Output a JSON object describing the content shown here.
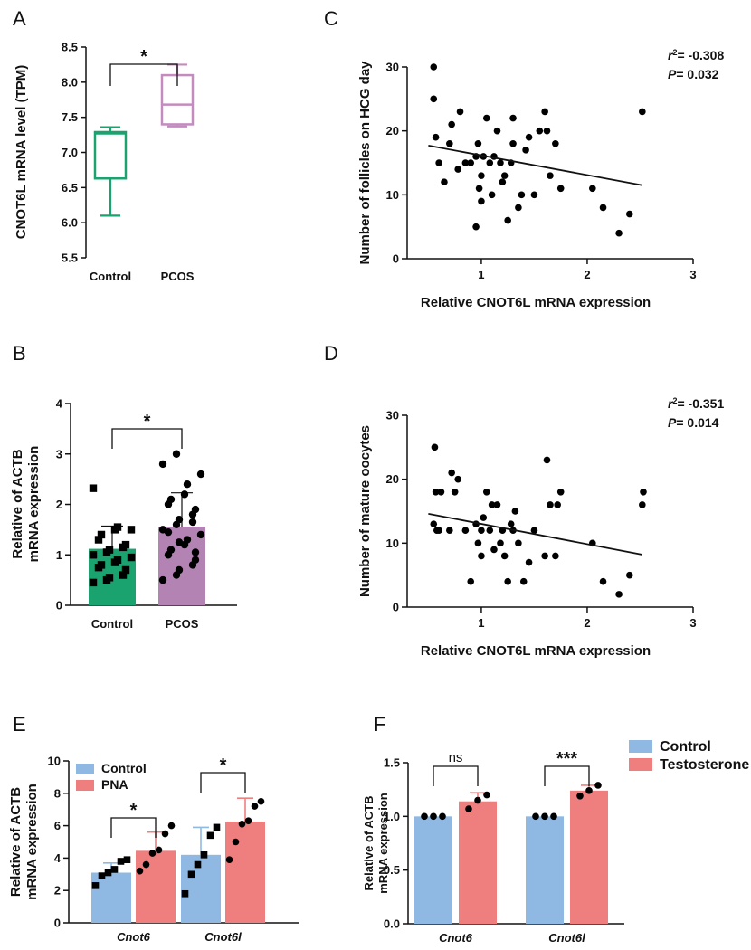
{
  "panels": {
    "A": "A",
    "B": "B",
    "C": "C",
    "D": "D",
    "E": "E",
    "F": "F"
  },
  "chart_data": [
    {
      "id": "A",
      "type": "box",
      "ylabel": "CNOT6L mRNA level (TPM)",
      "ylim": [
        5.5,
        8.5
      ],
      "yticks": [
        5.5,
        6.0,
        6.5,
        7.0,
        7.5,
        8.0,
        8.5
      ],
      "yticklabels": [
        "5.5",
        "6.0",
        "6.5",
        "7.0",
        "7.5",
        "8.0",
        "8.5"
      ],
      "categories": [
        "Control",
        "PCOS"
      ],
      "boxes": [
        {
          "name": "Control",
          "min": 6.1,
          "q1": 6.63,
          "median": 7.27,
          "q3": 7.29,
          "max": 7.36,
          "color": "#1aa36f"
        },
        {
          "name": "PCOS",
          "min": 7.37,
          "q1": 7.4,
          "median": 7.68,
          "q3": 8.1,
          "max": 8.25,
          "color": "#c48bbf"
        }
      ],
      "significance": "*"
    },
    {
      "id": "B",
      "type": "bar",
      "ylabel": [
        "Relative of ACTB",
        "mRNA expression"
      ],
      "ylim": [
        0,
        4
      ],
      "yticks": [
        0,
        1,
        2,
        3,
        4
      ],
      "yticklabels": [
        "0",
        "1",
        "2",
        "3",
        "4"
      ],
      "categories": [
        "Control",
        "PCOS"
      ],
      "values": [
        1.12,
        1.56
      ],
      "errors": [
        0.45,
        0.67
      ],
      "colors": [
        "#1aa36f",
        "#b383b3"
      ],
      "points": [
        [
          0.45,
          0.5,
          0.55,
          0.6,
          0.7,
          0.75,
          0.8,
          0.85,
          0.9,
          0.95,
          1.0,
          1.05,
          1.1,
          1.15,
          1.2,
          1.3,
          1.4,
          1.5,
          1.55,
          1.5,
          2.32
        ],
        [
          0.5,
          0.6,
          0.7,
          0.8,
          0.9,
          1.0,
          1.1,
          1.2,
          1.3,
          1.4,
          1.5,
          1.6,
          1.7,
          1.8,
          1.9,
          2.0,
          2.1,
          2.2,
          2.4,
          2.6,
          2.8,
          3.0,
          1.25,
          1.65,
          1.05,
          1.45
        ]
      ],
      "point_markers": [
        "square",
        "circle"
      ],
      "significance": "*"
    },
    {
      "id": "C",
      "type": "scatter",
      "xlabel": "Relative CNOT6L mRNA expression",
      "ylabel": "Number of follicles on HCG day",
      "xlim": [
        0.3,
        3
      ],
      "ylim": [
        0,
        30
      ],
      "xticks": [
        1,
        2,
        3
      ],
      "xticklabels": [
        "1",
        "2",
        "3"
      ],
      "yticks": [
        0,
        10,
        20,
        30
      ],
      "yticklabels": [
        "0",
        "10",
        "20",
        "30"
      ],
      "x": [
        0.55,
        0.55,
        0.57,
        0.6,
        0.65,
        0.7,
        0.72,
        0.78,
        0.8,
        0.85,
        0.9,
        0.95,
        0.95,
        0.97,
        0.98,
        1.0,
        1.0,
        1.02,
        1.05,
        1.08,
        1.1,
        1.12,
        1.15,
        1.18,
        1.2,
        1.22,
        1.25,
        1.28,
        1.3,
        1.3,
        1.35,
        1.38,
        1.42,
        1.45,
        1.5,
        1.55,
        1.6,
        1.62,
        1.65,
        1.7,
        1.75,
        2.05,
        2.15,
        2.3,
        2.4,
        2.52
      ],
      "y": [
        30,
        25,
        19,
        15,
        12,
        18,
        21,
        14,
        23,
        15,
        15,
        5,
        16,
        18,
        11,
        9,
        13,
        16,
        22,
        15,
        10,
        16,
        20,
        15,
        12,
        13,
        6,
        15,
        22,
        18,
        8,
        10,
        17,
        19,
        10,
        20,
        23,
        20,
        13,
        18,
        11,
        11,
        8,
        4,
        7,
        23
      ],
      "fit": {
        "x": [
          0.5,
          2.52
        ],
        "y": [
          17.7,
          11.5
        ]
      },
      "stats": {
        "r2_label": "= -0.308",
        "p_label": "= 0.032"
      }
    },
    {
      "id": "D",
      "type": "scatter",
      "xlabel": "Relative CNOT6L mRNA expression",
      "ylabel": "Number of mature oocytes",
      "xlim": [
        0.3,
        3
      ],
      "ylim": [
        0,
        30
      ],
      "xticks": [
        1,
        2,
        3
      ],
      "xticklabels": [
        "1",
        "2",
        "3"
      ],
      "yticks": [
        0,
        10,
        20,
        30
      ],
      "yticklabels": [
        "0",
        "10",
        "20",
        "30"
      ],
      "x": [
        0.55,
        0.56,
        0.57,
        0.58,
        0.6,
        0.62,
        0.7,
        0.72,
        0.75,
        0.78,
        0.85,
        0.9,
        0.95,
        0.97,
        1.0,
        1.0,
        1.02,
        1.05,
        1.08,
        1.1,
        1.12,
        1.15,
        1.18,
        1.2,
        1.22,
        1.25,
        1.28,
        1.3,
        1.32,
        1.35,
        1.4,
        1.45,
        1.5,
        1.6,
        1.62,
        1.65,
        1.7,
        1.72,
        1.75,
        2.05,
        2.15,
        2.3,
        2.4,
        2.52,
        2.53
      ],
      "y": [
        13,
        25,
        18,
        12,
        12,
        18,
        12,
        21,
        18,
        20,
        12,
        4,
        13,
        10,
        12,
        8,
        14,
        18,
        12,
        16,
        9,
        16,
        10,
        12,
        8,
        4,
        13,
        12,
        15,
        10,
        4,
        7,
        12,
        8,
        23,
        16,
        8,
        16,
        18,
        10,
        4,
        2,
        5,
        16,
        18
      ],
      "fit": {
        "x": [
          0.5,
          2.52
        ],
        "y": [
          14.6,
          8.2
        ]
      },
      "stats": {
        "r2_label": "= -0.351",
        "p_label": "= 0.014"
      }
    },
    {
      "id": "E",
      "type": "bar",
      "ylabel": [
        "Relative of ACTB",
        "mRNA expression"
      ],
      "ylim": [
        0,
        10
      ],
      "yticks": [
        0,
        2,
        4,
        6,
        8,
        10
      ],
      "yticklabels": [
        "0",
        "2",
        "4",
        "6",
        "8",
        "10"
      ],
      "categories": [
        "Cnot6",
        "Cnot6l"
      ],
      "series": [
        {
          "name": "Control",
          "color": "#8fb9e3",
          "values": [
            3.1,
            4.2
          ],
          "errors": [
            0.6,
            1.7
          ],
          "points": [
            [
              2.3,
              2.9,
              3.1,
              3.3,
              3.8,
              3.9
            ],
            [
              1.8,
              3.0,
              3.6,
              4.2,
              5.4,
              5.9
            ]
          ],
          "marker": "square"
        },
        {
          "name": "PNA",
          "color": "#ef7f7f",
          "values": [
            4.45,
            6.25
          ],
          "errors": [
            1.15,
            1.45
          ],
          "points": [
            [
              3.2,
              3.6,
              4.3,
              4.5,
              5.5,
              6.0
            ],
            [
              3.9,
              5.0,
              6.1,
              6.3,
              7.2,
              7.5
            ]
          ],
          "marker": "circle"
        }
      ],
      "significance": [
        "*",
        "*"
      ]
    },
    {
      "id": "F",
      "type": "bar",
      "ylabel": [
        "Relative of ACTB",
        "mRNA expression"
      ],
      "ylim": [
        0,
        1.5
      ],
      "yticks": [
        0,
        0.5,
        1.0,
        1.5
      ],
      "yticklabels": [
        "0.0",
        "0.5",
        "1.0",
        "1.5"
      ],
      "categories": [
        "Cnot6",
        "Cnot6l"
      ],
      "series": [
        {
          "name": "Control",
          "color": "#8fb9e3",
          "values": [
            1.0,
            1.0
          ],
          "errors": [
            0.0,
            0.0
          ],
          "points": [
            [
              1.0,
              1.0,
              1.0
            ],
            [
              1.0,
              1.0,
              1.0
            ]
          ],
          "marker": "circle"
        },
        {
          "name": "Testosterone",
          "color": "#ef7f7f",
          "values": [
            1.14,
            1.24
          ],
          "errors": [
            0.08,
            0.05
          ],
          "points": [
            [
              1.07,
              1.15,
              1.2
            ],
            [
              1.19,
              1.24,
              1.29
            ]
          ],
          "marker": "circle"
        }
      ],
      "significance": [
        "ns",
        "***"
      ]
    }
  ]
}
